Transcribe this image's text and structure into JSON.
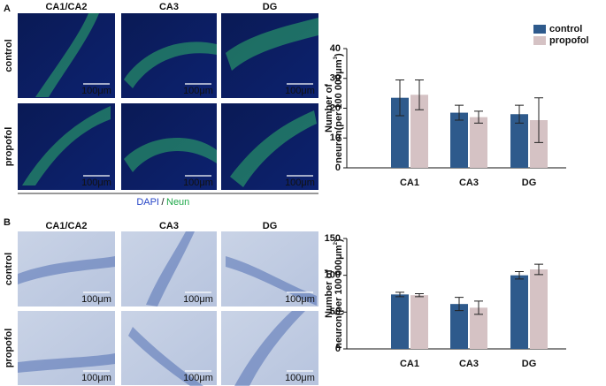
{
  "panels": [
    {
      "label": "A",
      "columns": [
        "CA1/CA2",
        "CA3",
        "DG"
      ],
      "rows": [
        "control",
        "propofol"
      ],
      "scale_bar": "100μm",
      "caption": {
        "dapi": "DAPI",
        "sep": "/",
        "neun": "Neun"
      }
    },
    {
      "label": "B",
      "columns": [
        "CA1/CA2",
        "CA3",
        "DG"
      ],
      "rows": [
        "control",
        "propofol"
      ],
      "scale_bar": "100μm"
    }
  ],
  "chart_data": [
    {
      "type": "bar",
      "categories": [
        "CA1",
        "CA3",
        "DG"
      ],
      "ylabel": {
        "line1": "Number of",
        "line2": "neuron(per 100 000μm",
        "sup": "3",
        "end": ")"
      },
      "series": [
        {
          "name": "control",
          "color": "#2e5a8c",
          "values": [
            23.5,
            18.5,
            18
          ],
          "error": [
            6,
            2.5,
            3
          ]
        },
        {
          "name": "propofol",
          "color": "#d5c2c4",
          "values": [
            24.5,
            17,
            16
          ],
          "error": [
            5,
            2,
            7.5
          ]
        }
      ],
      "ylim": [
        0,
        40
      ],
      "yticks": [
        0,
        10,
        20,
        30,
        40
      ],
      "legend": "top-right"
    },
    {
      "type": "bar",
      "categories": [
        "CA1",
        "CA3",
        "DG"
      ],
      "ylabel": {
        "line1": "Number of",
        "line2": "neuron(per 100 000μm",
        "sup": "2",
        "end": ")"
      },
      "series": [
        {
          "name": "control",
          "color": "#2e5a8c",
          "values": [
            74,
            61,
            100
          ],
          "error": [
            3,
            9,
            5
          ]
        },
        {
          "name": "propofol",
          "color": "#d5c2c4",
          "values": [
            73,
            56,
            108
          ],
          "error": [
            2,
            9,
            7
          ]
        }
      ],
      "ylim": [
        0,
        150
      ],
      "yticks": [
        0,
        50,
        100,
        150
      ]
    }
  ]
}
